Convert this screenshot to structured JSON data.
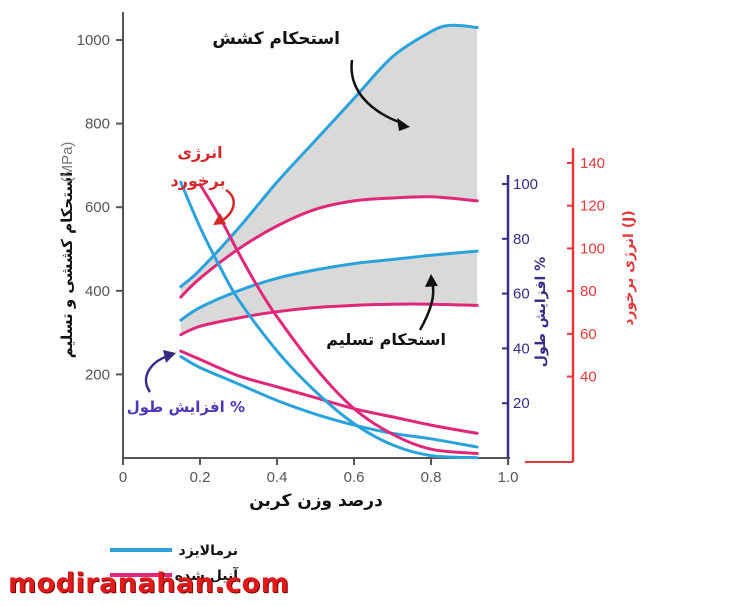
{
  "chart_data": {
    "type": "line",
    "x_axis": {
      "label": "درصد وزن کربن",
      "range": [
        0,
        1.0
      ],
      "ticks": [
        "0",
        "0.2",
        "0.4",
        "0.6",
        "0.8",
        "1.0"
      ]
    },
    "y_axis_left": {
      "label": "استحکام کششی و تسلیم",
      "unit": "(MPa)",
      "range": [
        0,
        1050
      ],
      "ticks": [
        "200",
        "400",
        "600",
        "800",
        "1000"
      ]
    },
    "y_axis_elongation": {
      "label": "افزایش طول %",
      "range": [
        0,
        105
      ],
      "ticks": [
        "20",
        "40",
        "60",
        "80",
        "100"
      ],
      "color": "#3b2a86"
    },
    "y_axis_impact": {
      "label": "انرژی برخورد (J)",
      "range": [
        0,
        150
      ],
      "ticks": [
        "40",
        "60",
        "80",
        "100",
        "120",
        "140"
      ],
      "color": "#e23a3a"
    },
    "series": [
      {
        "name": "استحکام کششی",
        "condition": "نرمالایزد",
        "axis": "left",
        "color": "#2aa3dc",
        "x": [
          0.15,
          0.2,
          0.3,
          0.4,
          0.5,
          0.6,
          0.7,
          0.8,
          0.85,
          0.92
        ],
        "y": [
          410,
          450,
          550,
          660,
          760,
          860,
          960,
          1020,
          1035,
          1030
        ]
      },
      {
        "name": "استحکام کششی",
        "condition": "آنیل شده",
        "axis": "left",
        "color": "#e0287a",
        "x": [
          0.15,
          0.2,
          0.3,
          0.4,
          0.5,
          0.6,
          0.7,
          0.8,
          0.92
        ],
        "y": [
          385,
          430,
          500,
          555,
          595,
          615,
          622,
          625,
          615
        ]
      },
      {
        "name": "استحکام تسلیم",
        "condition": "نرمالایزد",
        "axis": "left",
        "color": "#2aa3dc",
        "x": [
          0.15,
          0.2,
          0.3,
          0.4,
          0.5,
          0.6,
          0.7,
          0.8,
          0.92
        ],
        "y": [
          330,
          360,
          400,
          430,
          450,
          465,
          475,
          485,
          495
        ]
      },
      {
        "name": "استحکام تسلیم",
        "condition": "آنیل شده",
        "axis": "left",
        "color": "#e0287a",
        "x": [
          0.15,
          0.2,
          0.3,
          0.4,
          0.5,
          0.6,
          0.7,
          0.8,
          0.92
        ],
        "y": [
          295,
          315,
          335,
          350,
          360,
          365,
          368,
          368,
          365
        ]
      },
      {
        "name": "افزایش طول %",
        "condition": "نرمالایزد",
        "axis": "elongation",
        "color": "#2aa3dc",
        "x": [
          0.15,
          0.2,
          0.3,
          0.4,
          0.5,
          0.6,
          0.7,
          0.8,
          0.92
        ],
        "y": [
          37,
          33,
          27,
          21,
          16,
          12,
          9,
          7,
          4
        ]
      },
      {
        "name": "افزایش طول %",
        "condition": "آنیل شده",
        "axis": "elongation",
        "color": "#e0287a",
        "x": [
          0.15,
          0.2,
          0.3,
          0.4,
          0.5,
          0.6,
          0.7,
          0.8,
          0.92
        ],
        "y": [
          39,
          36,
          30,
          26,
          22,
          18,
          15,
          12,
          9
        ]
      },
      {
        "name": "انرژی برخورد",
        "condition": "نرمالایزد",
        "axis": "impact",
        "color": "#2aa3dc",
        "x": [
          0.15,
          0.2,
          0.25,
          0.3,
          0.4,
          0.5,
          0.6,
          0.7,
          0.8,
          0.92
        ],
        "y": [
          131,
          110,
          92,
          76,
          52,
          33,
          18,
          8,
          3,
          2
        ]
      },
      {
        "name": "انرژی برخورد",
        "condition": "آنیل شده",
        "axis": "impact",
        "color": "#e0287a",
        "x": [
          0.2,
          0.25,
          0.3,
          0.35,
          0.4,
          0.5,
          0.6,
          0.7,
          0.8,
          0.92
        ],
        "y": [
          130,
          115,
          98,
          82,
          68,
          44,
          25,
          13,
          6,
          4
        ]
      }
    ],
    "annotations": {
      "tensile": "استحکام کشش",
      "yield": "استحکام تسلیم",
      "impact": "انرژی برخورد",
      "elongation": "افزایش طول %"
    },
    "legend": [
      {
        "label": "نرمالایزد",
        "color": "#2aa3dc"
      },
      {
        "label": "آنیل شده",
        "color": "#e0287a"
      }
    ],
    "grid": false
  },
  "watermark": "modiranahan.com"
}
